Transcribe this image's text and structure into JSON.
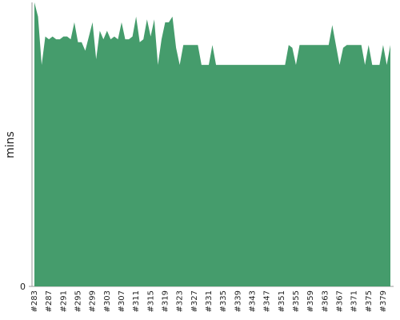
{
  "chart_data": {
    "type": "area",
    "ylabel": "mins",
    "color": "#459c6c",
    "categories": [
      "#283",
      null,
      null,
      null,
      "#287",
      null,
      null,
      null,
      "#291",
      null,
      null,
      null,
      "#295",
      null,
      null,
      null,
      "#299",
      null,
      null,
      null,
      "#303",
      null,
      null,
      null,
      "#307",
      null,
      null,
      null,
      "#311",
      null,
      null,
      null,
      "#315",
      null,
      null,
      null,
      "#319",
      null,
      null,
      null,
      "#323",
      null,
      null,
      null,
      "#327",
      null,
      null,
      null,
      "#331",
      null,
      null,
      null,
      "#335",
      null,
      null,
      null,
      "#339",
      null,
      null,
      null,
      "#343",
      null,
      null,
      null,
      "#347",
      null,
      null,
      null,
      "#351",
      null,
      null,
      null,
      "#355",
      null,
      null,
      null,
      "#359",
      null,
      null,
      null,
      "#363",
      null,
      null,
      null,
      "#367",
      null,
      null,
      null,
      "#371",
      null,
      null,
      null,
      "#375",
      null,
      null,
      null,
      "#379",
      null,
      null
    ],
    "values": [
      100,
      95,
      78,
      88,
      87,
      88,
      87,
      87,
      88,
      88,
      87,
      93,
      86,
      86,
      83,
      88,
      93,
      80,
      90,
      87,
      90,
      87,
      88,
      87,
      93,
      87,
      87,
      88,
      95,
      86,
      87,
      94,
      88,
      94,
      78,
      87,
      93,
      93,
      95,
      84,
      78,
      85,
      85,
      85,
      85,
      85,
      78,
      78,
      78,
      85,
      78,
      78,
      78,
      78,
      78,
      78,
      78,
      78,
      78,
      78,
      78,
      78,
      78,
      78,
      78,
      78,
      78,
      78,
      78,
      78,
      85,
      84,
      78,
      85,
      85,
      85,
      85,
      85,
      85,
      85,
      85,
      85,
      92,
      85,
      78,
      84,
      85,
      85,
      85,
      85,
      85,
      78,
      85,
      78,
      78,
      78,
      85,
      78,
      85
    ],
    "ylim": [
      0,
      100
    ],
    "yticks": [
      0
    ]
  }
}
